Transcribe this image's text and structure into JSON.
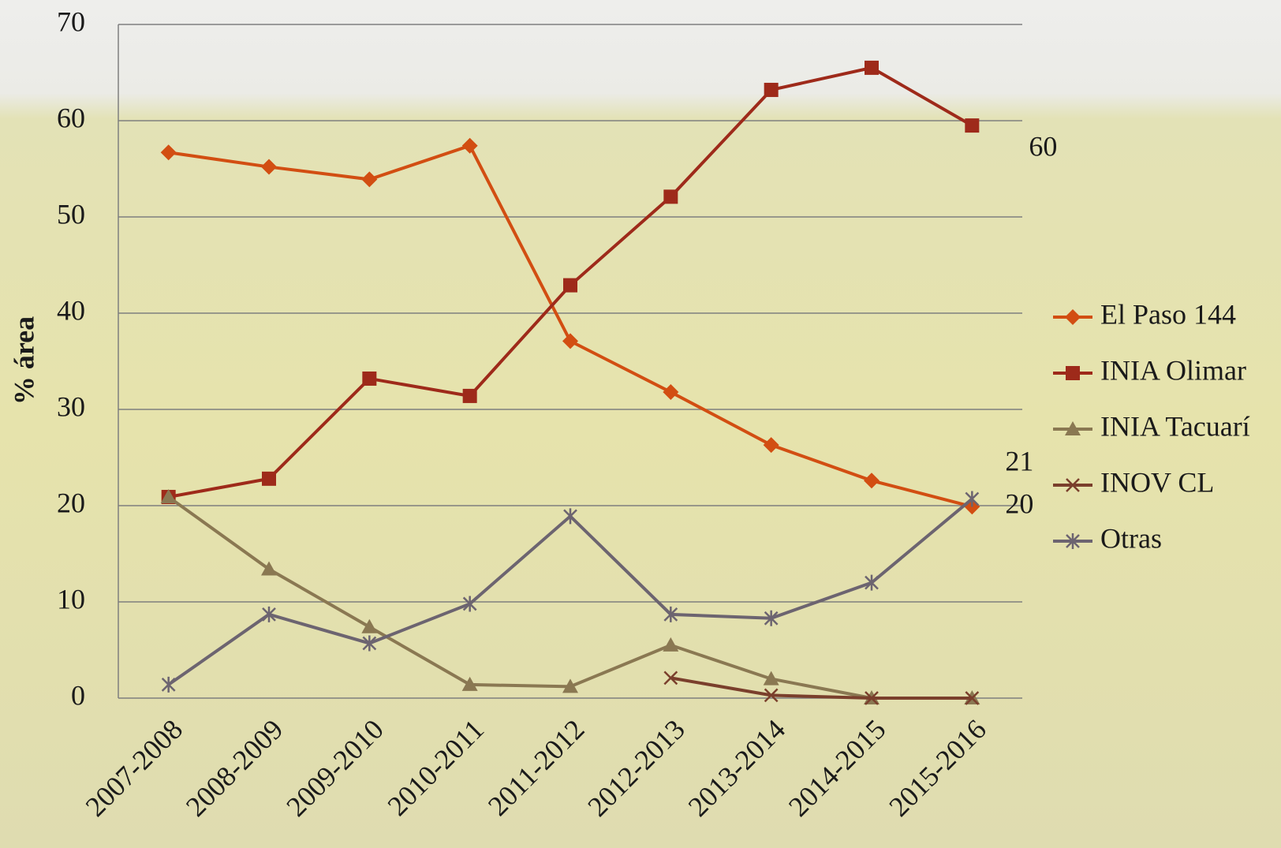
{
  "chart_data": {
    "type": "line",
    "y_label": "% área",
    "categories": [
      "2007-2008",
      "2008-2009",
      "2009-2010",
      "2010-2011",
      "2011-2012",
      "2012-2013",
      "2013-2014",
      "2014-2015",
      "2015-2016"
    ],
    "ylim": [
      0,
      70
    ],
    "yticks": [
      0,
      10,
      20,
      30,
      40,
      50,
      60,
      70
    ],
    "grid": true,
    "legend": "right",
    "series": [
      {
        "name": "El Paso 144",
        "color": "#d24e12",
        "marker": "diamond",
        "values": [
          56.7,
          55.2,
          53.9,
          57.4,
          37.1,
          31.8,
          26.3,
          22.6,
          19.9
        ],
        "value_labels": [
          null,
          null,
          null,
          null,
          null,
          null,
          null,
          null,
          "20"
        ]
      },
      {
        "name": "INIA Olimar",
        "color": "#9e2a1a",
        "marker": "square",
        "values": [
          20.9,
          22.8,
          33.2,
          31.4,
          42.9,
          52.1,
          63.2,
          65.5,
          59.5
        ],
        "value_labels": [
          null,
          null,
          null,
          null,
          null,
          null,
          null,
          null,
          "60"
        ]
      },
      {
        "name": "INIA Tacuarí",
        "color": "#8a7852",
        "marker": "triangle",
        "values": [
          20.9,
          13.4,
          7.4,
          1.4,
          1.2,
          5.5,
          2.0,
          0,
          0
        ]
      },
      {
        "name": "INOV CL",
        "color": "#7a3f2c",
        "marker": "x",
        "values": [
          null,
          null,
          null,
          null,
          null,
          2.1,
          0.3,
          0,
          0
        ]
      },
      {
        "name": "Otras",
        "color": "#6c6470",
        "marker": "star",
        "values": [
          1.4,
          8.7,
          5.7,
          9.8,
          18.9,
          8.7,
          8.3,
          12.0,
          20.7
        ],
        "value_labels": [
          null,
          null,
          null,
          null,
          null,
          null,
          null,
          null,
          "21"
        ]
      }
    ]
  }
}
